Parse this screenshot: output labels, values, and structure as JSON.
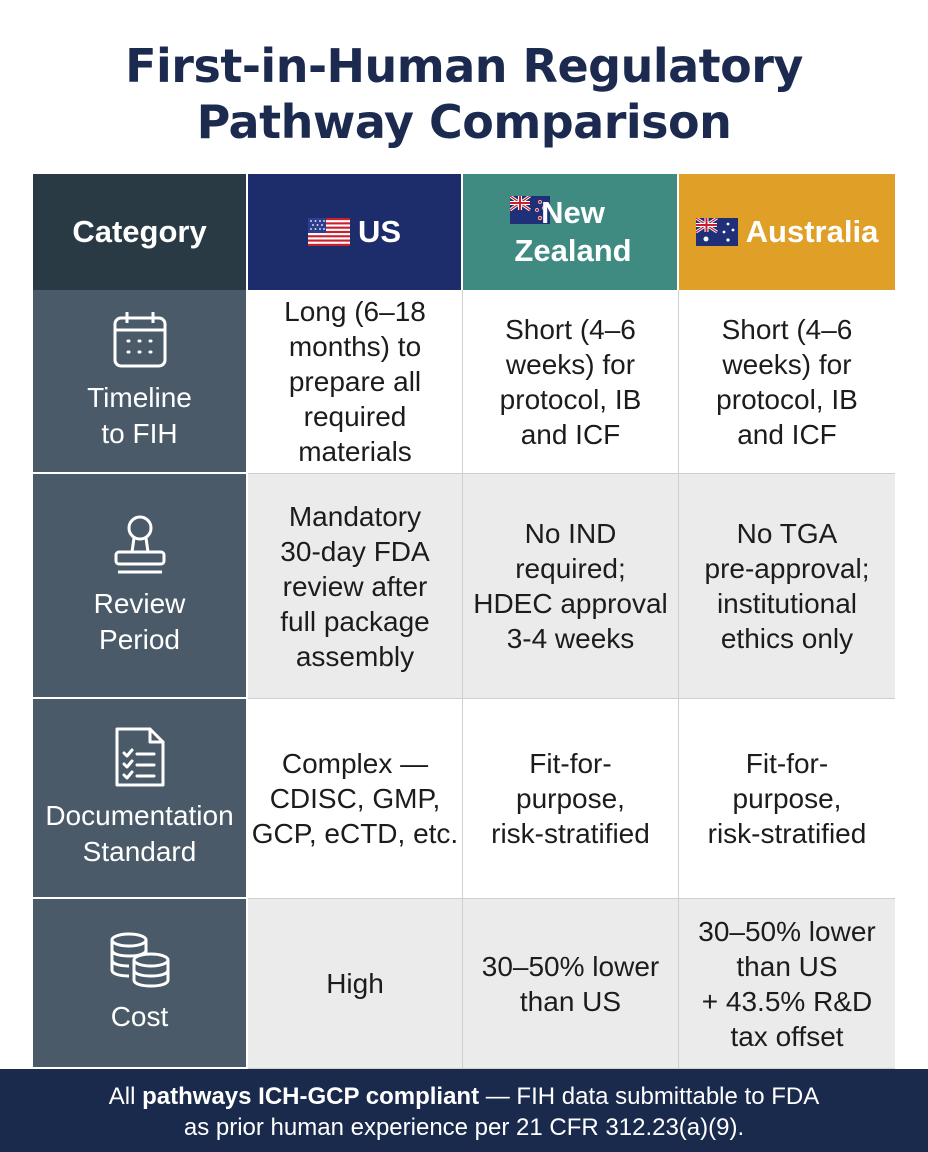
{
  "title": {
    "line1": "First-in-Human Regulatory",
    "line2": "Pathway Comparison"
  },
  "header": {
    "category": "Category",
    "us": "US",
    "nz": "New\nZealand",
    "au": "Australia"
  },
  "rows": [
    {
      "category": "Timeline\nto FIH",
      "icon": "calendar-icon",
      "us": "Long (6–18\nmonths) to\nprepare all\nrequired\nmaterials",
      "nz": "Short (4–6\nweeks) for\nprotocol, IB\nand ICF",
      "au": "Short (4–6\nweeks) for\nprotocol, IB\nand ICF"
    },
    {
      "category": "Review\nPeriod",
      "icon": "stamp-icon",
      "us": "Mandatory\n30-day FDA\nreview after\nfull package\nassembly",
      "nz": "No IND\nrequired;\nHDEC approval\n3-4 weeks",
      "au": "No TGA\npre-approval;\ninstitutional\nethics only"
    },
    {
      "category": "Documentation\nStandard",
      "icon": "checklist-document-icon",
      "us": "Complex —\nCDISC, GMP,\nGCP, eCTD, etc.",
      "nz": "Fit-for-\npurpose,\nrisk-stratified",
      "au": "Fit-for-\npurpose,\nrisk-stratified"
    },
    {
      "category": "Cost",
      "icon": "coins-icon",
      "us": "High",
      "nz": "30–50% lower\nthan US",
      "au": "30–50% lower\nthan US\n+ 43.5% R&D\ntax offset"
    }
  ],
  "footer": {
    "prefix": "All ",
    "bold": "pathways ICH-GCP compliant",
    "line1_rest": " — FIH data submittable to FDA",
    "line2": "as prior human experience per 21 CFR 312.23(a)(9)."
  },
  "colors": {
    "title": "#1b2a4e",
    "category_header": "#2a3a45",
    "us_header": "#1d2d6b",
    "nz_header": "#3f8b82",
    "au_header": "#e09f26",
    "category_column": "#4a5a68",
    "footer": "#1a2a4c"
  },
  "flags": {
    "us": "us-flag-icon",
    "nz": "nz-flag-icon",
    "au": "au-flag-icon"
  }
}
